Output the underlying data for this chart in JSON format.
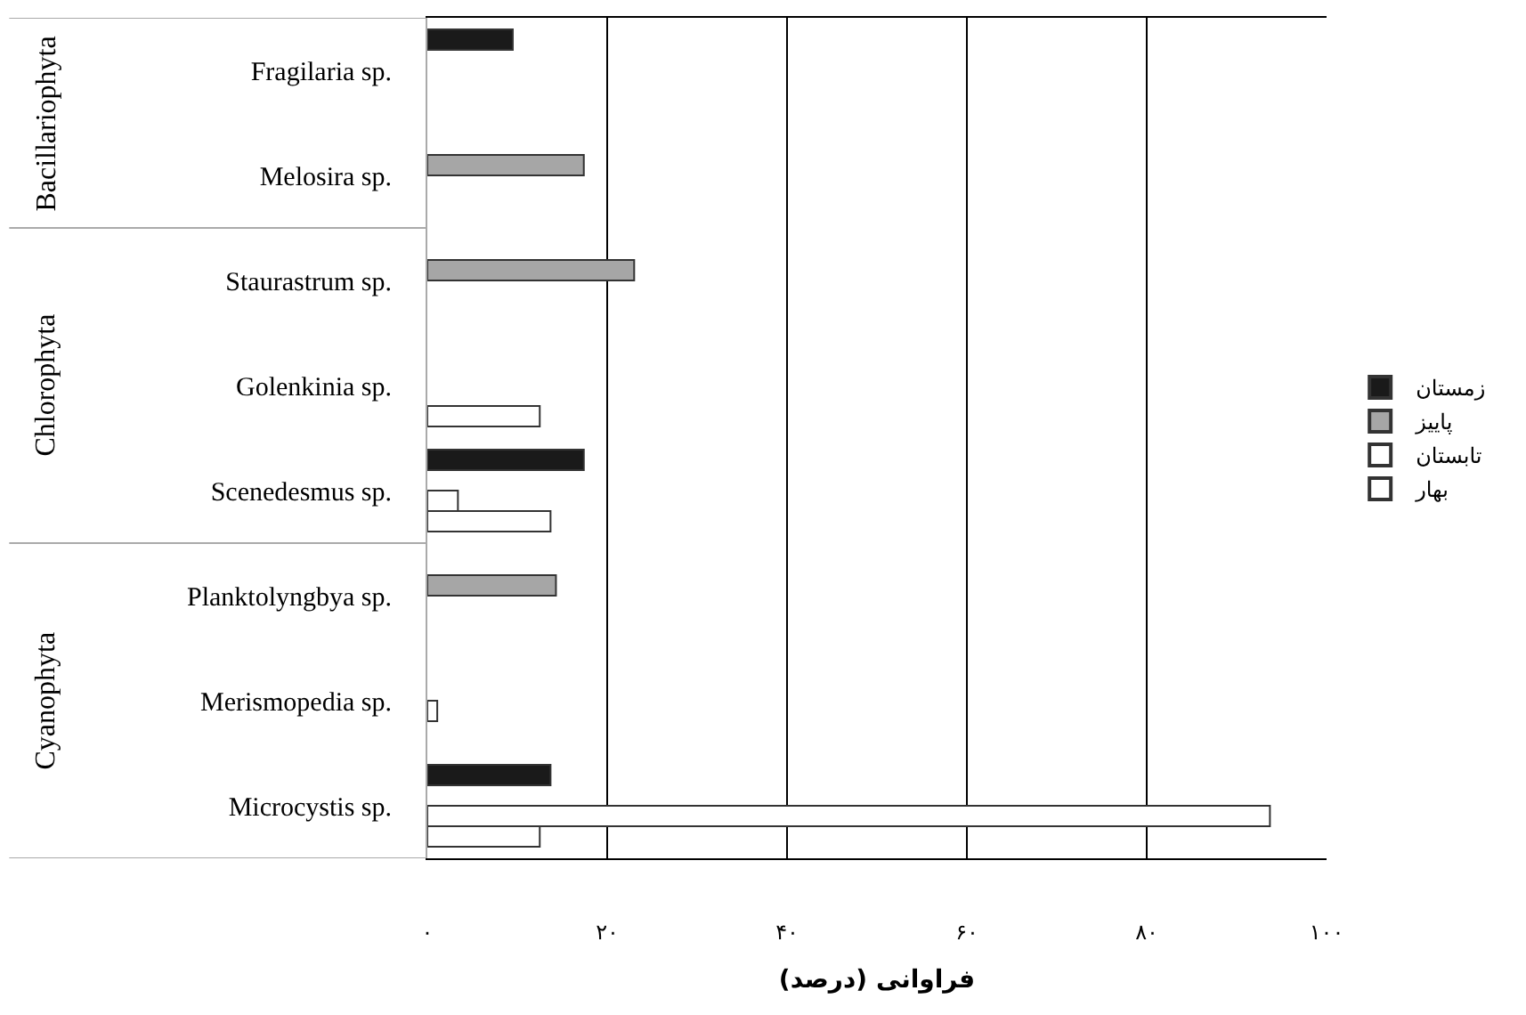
{
  "chart_data": {
    "type": "bar",
    "orientation": "horizontal",
    "xlabel": "فراوانی (درصد)",
    "categories": [
      "Fragilaria sp.",
      "Melosira sp.",
      "Staurastrum sp.",
      "Golenkinia sp.",
      "Scenedesmus sp.",
      "Planktolyngbya sp.",
      "Merismopedia sp.",
      "Microcystis sp."
    ],
    "series": [
      {
        "name": "زمستان",
        "color": "#1a1a1a",
        "values": [
          9.5,
          null,
          null,
          null,
          17.4,
          null,
          null,
          13.7
        ]
      },
      {
        "name": "پاییز",
        "color": "#a6a6a6",
        "values": [
          null,
          17.4,
          23,
          null,
          null,
          14.3,
          null,
          null
        ]
      },
      {
        "name": "تابستان",
        "color": "#ffffff",
        "values": [
          null,
          null,
          null,
          null,
          3.4,
          null,
          1.1,
          93.7
        ]
      },
      {
        "name": "بهار",
        "color": "#ffffff",
        "values": [
          null,
          null,
          null,
          12.5,
          13.7,
          null,
          null,
          12.5
        ]
      }
    ],
    "xlim": [
      0,
      100
    ],
    "xticks": [
      {
        "value": 0,
        "label": "۰"
      },
      {
        "value": 20,
        "label": "۲۰"
      },
      {
        "value": 40,
        "label": "۴۰"
      },
      {
        "value": 60,
        "label": "۶۰"
      },
      {
        "value": 80,
        "label": "۸۰"
      },
      {
        "value": 100,
        "label": "۱۰۰"
      }
    ],
    "annotations": [
      "Bacillariophyta",
      "Chlorophyta",
      "Cyanophyta"
    ],
    "grid": "x",
    "legend": "right"
  }
}
